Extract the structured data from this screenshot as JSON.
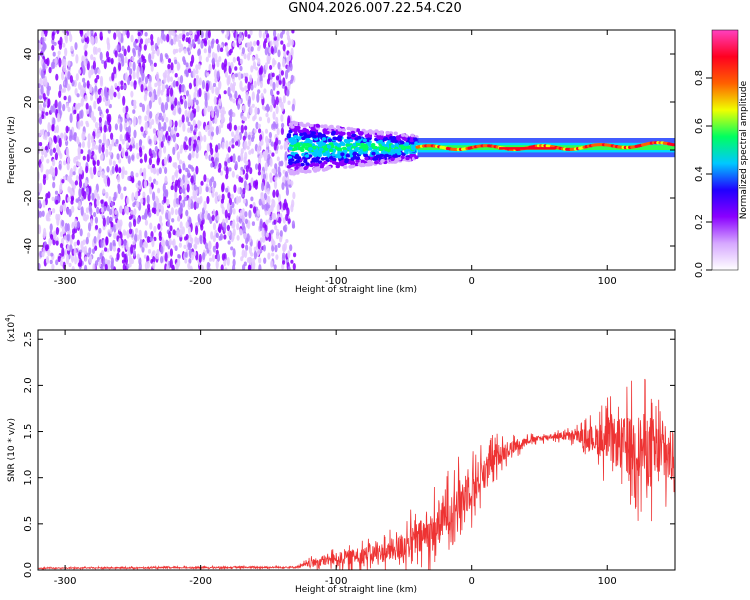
{
  "title": "GN04.2026.007.22.54.C20",
  "chart_data": [
    {
      "type": "heatmap",
      "xlabel": "Height of straight line (km)",
      "ylabel": "Frequency (Hz)",
      "xlim": [
        -320,
        150
      ],
      "ylim": [
        -50,
        50
      ],
      "x_ticks": [
        -300,
        -200,
        -100,
        0,
        100
      ],
      "y_ticks": [
        -40,
        -20,
        0,
        20,
        40
      ],
      "colorbar": {
        "label": "Normalized spectral amplitude",
        "range": [
          0,
          1
        ],
        "ticks": [
          "0.0",
          "0.2",
          "0.4",
          "0.6",
          "0.8"
        ],
        "tick_values": [
          0.0,
          0.2,
          0.4,
          0.6,
          0.8
        ],
        "colors": [
          "#ffffff",
          "#d6a8ff",
          "#8a00ff",
          "#2000ff",
          "#00c8ff",
          "#00ff60",
          "#f0ff00",
          "#ff6000",
          "#ff0020",
          "#ff40c0"
        ]
      },
      "regions": [
        {
          "x_range": [
            -320,
            -135
          ],
          "freq_range": [
            -50,
            50
          ],
          "amplitude": 0.1
        },
        {
          "x_range": [
            -135,
            -40
          ],
          "freq_range": [
            -10,
            12
          ],
          "amplitude": 0.3
        },
        {
          "x_range": [
            -40,
            150
          ],
          "freq_range": [
            -3,
            5
          ],
          "amplitude": 0.8
        }
      ]
    },
    {
      "type": "line",
      "xlabel": "Height of straight line (km)",
      "ylabel": "SNR (10 * v/v)",
      "y_scale_label": "(x10",
      "y_scale_exp": "4",
      "xlim": [
        -320,
        150
      ],
      "ylim": [
        0,
        2.6
      ],
      "x_ticks": [
        -300,
        -200,
        -100,
        0,
        100
      ],
      "y_ticks": [
        "0.0",
        "0.5",
        "1.0",
        "1.5",
        "2.0",
        "2.5"
      ],
      "y_tick_values": [
        0.0,
        0.5,
        1.0,
        1.5,
        2.0,
        2.5
      ],
      "line_color": "#ee3333",
      "envelope": [
        {
          "x": -320,
          "y": 0.02,
          "noise": 0.01
        },
        {
          "x": -130,
          "y": 0.03,
          "noise": 0.02
        },
        {
          "x": -110,
          "y": 0.1,
          "noise": 0.12
        },
        {
          "x": -60,
          "y": 0.2,
          "noise": 0.25
        },
        {
          "x": -30,
          "y": 0.4,
          "noise": 0.5
        },
        {
          "x": 0,
          "y": 0.9,
          "noise": 0.5
        },
        {
          "x": 20,
          "y": 1.25,
          "noise": 0.25
        },
        {
          "x": 40,
          "y": 1.4,
          "noise": 0.08
        },
        {
          "x": 60,
          "y": 1.45,
          "noise": 0.06
        },
        {
          "x": 80,
          "y": 1.45,
          "noise": 0.15
        },
        {
          "x": 100,
          "y": 1.4,
          "noise": 0.5
        },
        {
          "x": 130,
          "y": 1.3,
          "noise": 0.9
        },
        {
          "x": 150,
          "y": 1.2,
          "noise": 0.6
        }
      ]
    }
  ]
}
